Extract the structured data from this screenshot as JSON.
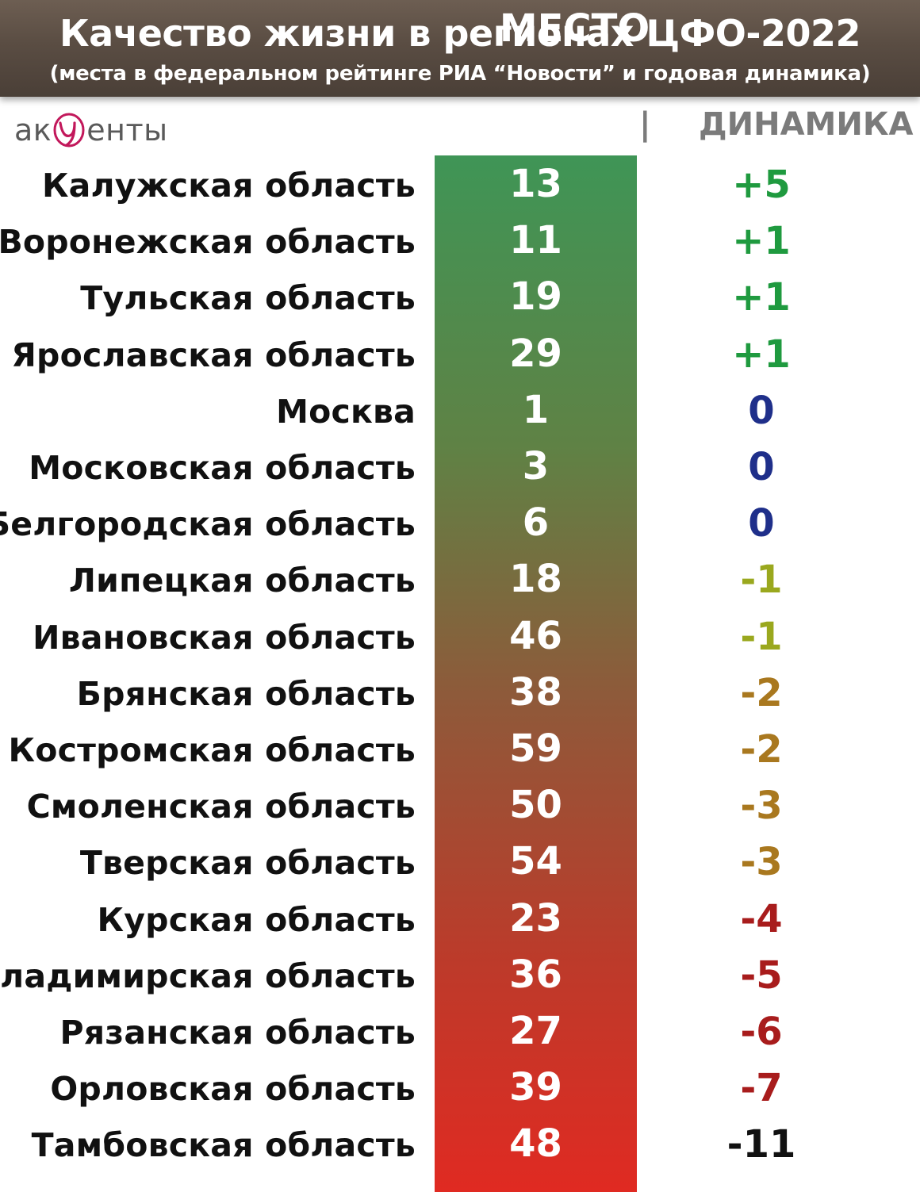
{
  "header": {
    "title": "Качество жизни в регионах ЦФО-2022",
    "subtitle": "(места в федеральном рейтинге РИА “Новости” и годовая динамика)"
  },
  "logo": {
    "prefix": "ак",
    "suffix": "енты"
  },
  "columns": {
    "place": "МЕСТО",
    "separator": "|",
    "dynamics": "ДИНАМИКА"
  },
  "colors": {
    "positive": "#1f9a3f",
    "zero": "#1f2f8a",
    "minus_small": "#9aa81e",
    "minus_mid": "#a9781f",
    "minus_large": "#a81c1c",
    "minus_extreme": "#111111",
    "bar_top": "#3f9556",
    "bar_bottom": "#e02a22"
  },
  "chart_data": {
    "type": "table",
    "title": "Качество жизни в регионах ЦФО-2022",
    "subtitle": "(места в федеральном рейтинге РИА “Новости” и годовая динамика)",
    "columns": [
      "МЕСТО",
      "ДИНАМИКА"
    ],
    "rows": [
      {
        "region": "Калужская область",
        "place": "13",
        "change": "+5",
        "tone": "positive"
      },
      {
        "region": "Воронежская область",
        "place": "11",
        "change": "+1",
        "tone": "positive"
      },
      {
        "region": "Тульская область",
        "place": "19",
        "change": "+1",
        "tone": "positive"
      },
      {
        "region": "Ярославская область",
        "place": "29",
        "change": "+1",
        "tone": "positive"
      },
      {
        "region": "Москва",
        "place": "1",
        "change": "0",
        "tone": "zero"
      },
      {
        "region": "Московская область",
        "place": "3",
        "change": "0",
        "tone": "zero"
      },
      {
        "region": "Белгородская область",
        "place": "6",
        "change": "0",
        "tone": "zero"
      },
      {
        "region": "Липецкая область",
        "place": "18",
        "change": "-1",
        "tone": "minus_small"
      },
      {
        "region": "Ивановская область",
        "place": "46",
        "change": "-1",
        "tone": "minus_small"
      },
      {
        "region": "Брянская область",
        "place": "38",
        "change": "-2",
        "tone": "minus_mid"
      },
      {
        "region": "Костромская область",
        "place": "59",
        "change": "-2",
        "tone": "minus_mid"
      },
      {
        "region": "Смоленская область",
        "place": "50",
        "change": "-3",
        "tone": "minus_mid"
      },
      {
        "region": "Тверская область",
        "place": "54",
        "change": "-3",
        "tone": "minus_mid"
      },
      {
        "region": "Курская область",
        "place": "23",
        "change": "-4",
        "tone": "minus_large"
      },
      {
        "region": "Владимирская область",
        "place": "36",
        "change": "-5",
        "tone": "minus_large"
      },
      {
        "region": "Рязанская область",
        "place": "27",
        "change": "-6",
        "tone": "minus_large"
      },
      {
        "region": "Орловская область",
        "place": "39",
        "change": "-7",
        "tone": "minus_large"
      },
      {
        "region": "Тамбовская область",
        "place": "48",
        "change": "-11",
        "tone": "minus_extreme"
      }
    ]
  }
}
